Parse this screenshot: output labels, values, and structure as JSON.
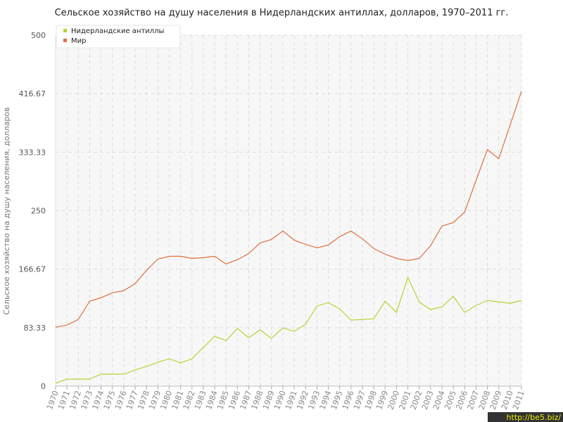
{
  "chart_data": {
    "type": "line",
    "title": "Сельское хозяйство на душу населения в Нидерландских антиллах, долларов, 1970–2011 гг.",
    "y_label": "Сельское хозяйство на душу населения, долларов",
    "categories": [
      "1970",
      "1971",
      "1972",
      "1973",
      "1974",
      "1975",
      "1976",
      "1977",
      "1978",
      "1979",
      "1980",
      "1981",
      "1982",
      "1983",
      "1984",
      "1985",
      "1986",
      "1987",
      "1988",
      "1989",
      "1990",
      "1991",
      "1992",
      "1993",
      "1994",
      "1995",
      "1996",
      "1997",
      "1998",
      "1999",
      "2000",
      "2001",
      "2002",
      "2003",
      "2004",
      "2005",
      "2006",
      "2007",
      "2008",
      "2009",
      "2010",
      "2011"
    ],
    "series": [
      {
        "name": "Нидерландские антиллы",
        "color": "#b5d334",
        "values": [
          4,
          10,
          10,
          10,
          17,
          17,
          17,
          23,
          28,
          34,
          39,
          33,
          39,
          55,
          71,
          65,
          82,
          69,
          80,
          68,
          83,
          78,
          88,
          114,
          119,
          110,
          94,
          95,
          96,
          121,
          105,
          155,
          120,
          109,
          113,
          128,
          105,
          115,
          122,
          120,
          118,
          122
        ]
      },
      {
        "name": "Мир",
        "color": "#e0703c",
        "values": [
          84,
          87,
          95,
          121,
          126,
          133,
          136,
          146,
          165,
          181,
          185,
          185,
          182,
          183,
          185,
          174,
          180,
          189,
          204,
          209,
          221,
          208,
          202,
          197,
          201,
          213,
          221,
          210,
          196,
          188,
          182,
          179,
          182,
          200,
          228,
          233,
          248,
          293,
          337,
          324,
          372,
          420
        ]
      }
    ],
    "ylim": [
      0,
      500
    ],
    "yticks": [
      0,
      83.33,
      166.67,
      250,
      333.33,
      416.67,
      500
    ],
    "grid": true,
    "legend": "top-left",
    "watermark": "http://be5.biz/"
  }
}
